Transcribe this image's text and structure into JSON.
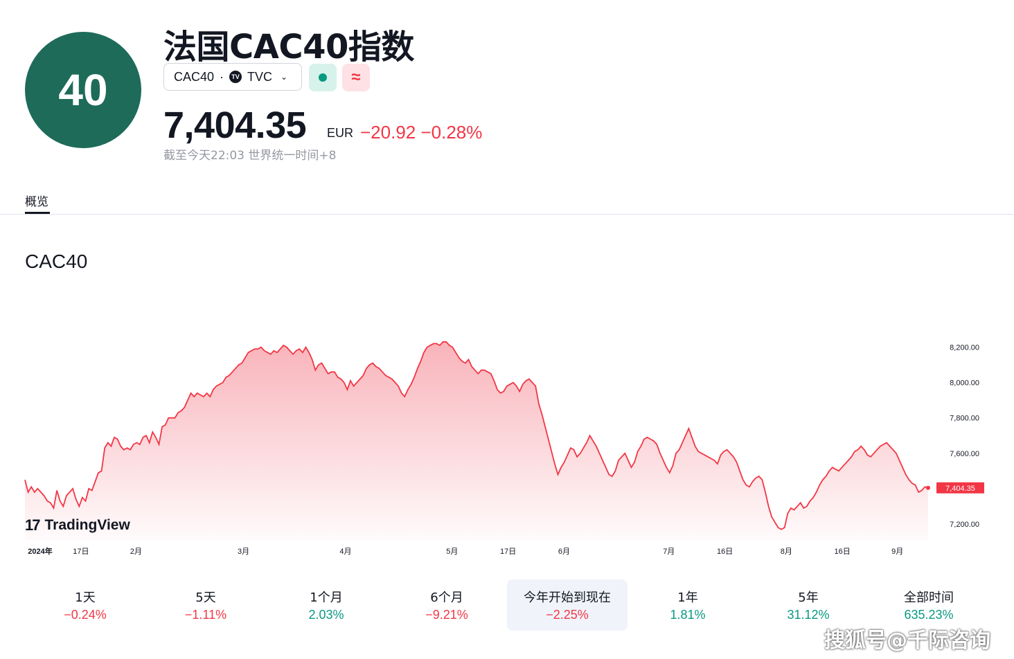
{
  "header": {
    "logo_text": "40",
    "title": "法国CAC40指数",
    "symbol": "CAC40",
    "separator": "·",
    "exchange_badge": "TV",
    "exchange": "TVC",
    "market_status": "open",
    "wave_symbol": "≈",
    "price": "7,404.35",
    "currency": "EUR",
    "change": "−20.92 −0.28%",
    "timestamp": "截至今天22:03 世界统一时间+8"
  },
  "tabs": {
    "overview": "概览"
  },
  "chart": {
    "title": "CAC40",
    "brand": "TradingView",
    "brand_mark": "17"
  },
  "chart_data": {
    "type": "area",
    "title": "CAC40",
    "y_ticks": [
      "8,200.00",
      "8,000.00",
      "7,800.00",
      "7,600.00",
      "7,200.00"
    ],
    "x_ticks": [
      "2024年",
      "17日",
      "2月",
      "3月",
      "4月",
      "5月",
      "17日",
      "6月",
      "7月",
      "16日",
      "8月",
      "16日",
      "9月"
    ],
    "ylim": [
      7110,
      8245
    ],
    "last_value": 7404.35,
    "last_label": "7,404.35",
    "line_color": "#f23645",
    "fill_color": "#f7a6ae",
    "series": [
      7450,
      7380,
      7410,
      7380,
      7400,
      7380,
      7360,
      7330,
      7320,
      7290,
      7390,
      7330,
      7300,
      7360,
      7380,
      7400,
      7340,
      7300,
      7350,
      7330,
      7400,
      7390,
      7440,
      7490,
      7500,
      7630,
      7660,
      7640,
      7690,
      7680,
      7640,
      7620,
      7630,
      7620,
      7650,
      7660,
      7650,
      7690,
      7700,
      7660,
      7720,
      7690,
      7650,
      7750,
      7760,
      7800,
      7800,
      7800,
      7830,
      7840,
      7860,
      7900,
      7940,
      7920,
      7940,
      7930,
      7920,
      7940,
      7920,
      7960,
      7980,
      7990,
      8000,
      8030,
      8040,
      8060,
      8080,
      8100,
      8110,
      8140,
      8170,
      8180,
      8190,
      8190,
      8200,
      8180,
      8170,
      8160,
      8180,
      8170,
      8190,
      8210,
      8200,
      8180,
      8160,
      8180,
      8190,
      8170,
      8200,
      8170,
      8130,
      8070,
      8100,
      8110,
      8080,
      8050,
      8060,
      8060,
      8030,
      8020,
      8000,
      7960,
      8010,
      7980,
      8000,
      8020,
      8040,
      8080,
      8100,
      8110,
      8090,
      8080,
      8060,
      8040,
      8030,
      8020,
      8000,
      7980,
      7940,
      7920,
      7960,
      7990,
      8030,
      8080,
      8120,
      8170,
      8200,
      8210,
      8220,
      8220,
      8210,
      8230,
      8230,
      8210,
      8200,
      8170,
      8140,
      8120,
      8110,
      8130,
      8090,
      8070,
      8050,
      8070,
      8070,
      8060,
      8050,
      8010,
      7960,
      7940,
      7950,
      7980,
      7990,
      8000,
      7980,
      7950,
      7990,
      8010,
      8020,
      8000,
      7980,
      7880,
      7820,
      7750,
      7680,
      7610,
      7540,
      7480,
      7520,
      7550,
      7590,
      7630,
      7620,
      7580,
      7600,
      7630,
      7660,
      7700,
      7670,
      7640,
      7600,
      7560,
      7520,
      7480,
      7470,
      7500,
      7560,
      7580,
      7600,
      7560,
      7520,
      7550,
      7610,
      7640,
      7680,
      7690,
      7680,
      7670,
      7650,
      7600,
      7560,
      7520,
      7490,
      7530,
      7600,
      7620,
      7660,
      7700,
      7740,
      7690,
      7640,
      7610,
      7600,
      7590,
      7580,
      7570,
      7560,
      7540,
      7590,
      7610,
      7620,
      7600,
      7580,
      7550,
      7500,
      7450,
      7420,
      7410,
      7440,
      7460,
      7470,
      7450,
      7380,
      7300,
      7240,
      7210,
      7180,
      7170,
      7180,
      7260,
      7290,
      7280,
      7300,
      7320,
      7290,
      7300,
      7330,
      7350,
      7380,
      7420,
      7450,
      7470,
      7500,
      7520,
      7510,
      7500,
      7520,
      7540,
      7560,
      7580,
      7610,
      7620,
      7640,
      7620,
      7590,
      7580,
      7600,
      7620,
      7640,
      7650,
      7660,
      7640,
      7620,
      7600,
      7560,
      7520,
      7480,
      7450,
      7430,
      7420,
      7380,
      7390,
      7410,
      7404.35
    ]
  },
  "ranges": [
    {
      "label": "1天",
      "value": "−0.24%",
      "trend": "neg",
      "active": false
    },
    {
      "label": "5天",
      "value": "−1.11%",
      "trend": "neg",
      "active": false
    },
    {
      "label": "1个月",
      "value": "2.03%",
      "trend": "pos",
      "active": false
    },
    {
      "label": "6个月",
      "value": "−9.21%",
      "trend": "neg",
      "active": false
    },
    {
      "label": "今年开始到现在",
      "value": "−2.25%",
      "trend": "neg",
      "active": true
    },
    {
      "label": "1年",
      "value": "1.81%",
      "trend": "pos",
      "active": false
    },
    {
      "label": "5年",
      "value": "31.12%",
      "trend": "pos",
      "active": false
    },
    {
      "label": "全部时间",
      "value": "635.23%",
      "trend": "pos",
      "active": false
    }
  ],
  "watermark": "搜狐号@千际咨询",
  "colors": {
    "brand_green": "#1e6b5a",
    "negative": "#f23645",
    "positive": "#089981"
  }
}
